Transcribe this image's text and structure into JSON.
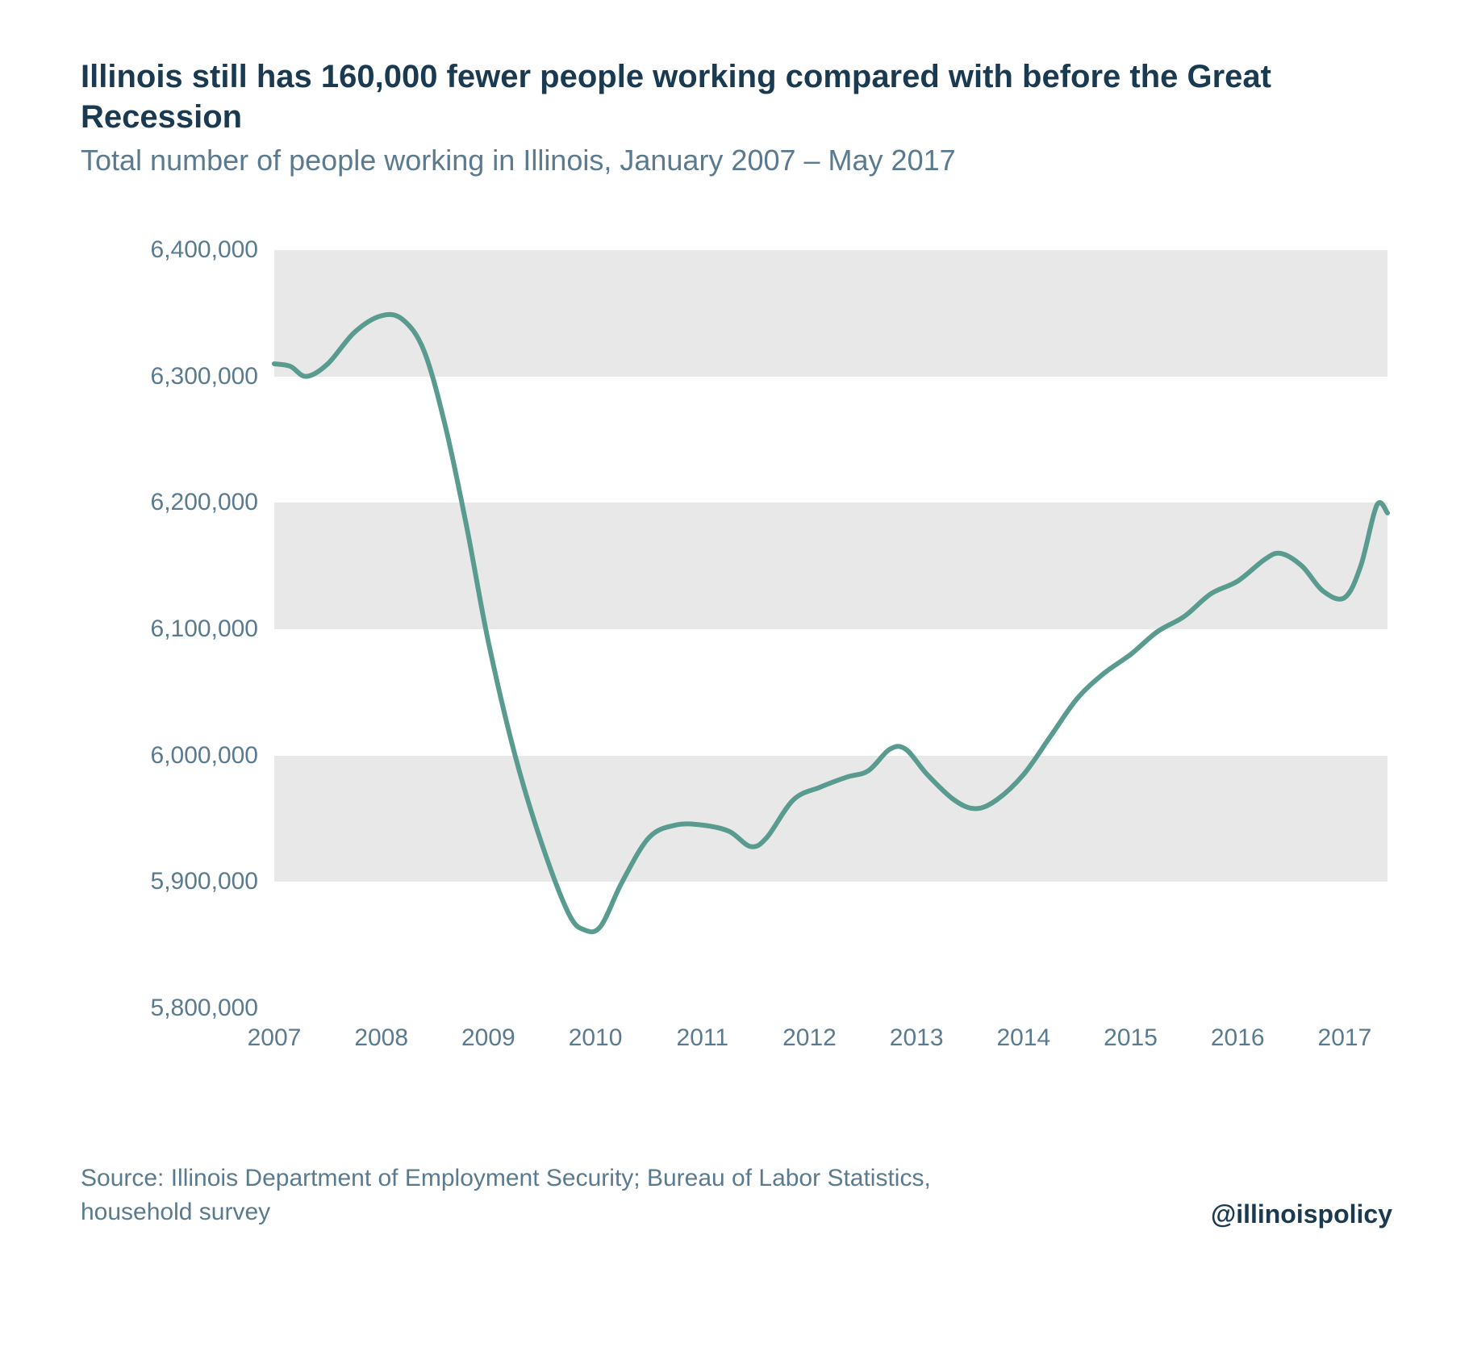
{
  "title": "Illinois still has 160,000 fewer people working compared with before the Great Recession",
  "subtitle": "Total number of people working in Illinois, January 2007 – May 2017",
  "source": "Source:  Illinois Department of Employment Security; Bureau of Labor Statistics, household survey",
  "handle": "@illinoispolicy",
  "chart": {
    "type": "line",
    "background_color": "#ffffff",
    "band_color": "#e8e8e8",
    "line_color": "#5a9b8f",
    "line_width": 6,
    "text_color": "#5a7a8f",
    "title_color": "#1a3a52",
    "title_fontsize": 40,
    "subtitle_fontsize": 36,
    "axis_label_fontsize": 30,
    "ylim": [
      5800000,
      6400000
    ],
    "ytick_step": 100000,
    "yticks": [
      5800000,
      5900000,
      6000000,
      6100000,
      6200000,
      6300000,
      6400000
    ],
    "ytick_labels": [
      "5,800,000",
      "5,900,000",
      "6,000,000",
      "6,100,000",
      "6,200,000",
      "6,300,000",
      "6,400,000"
    ],
    "xlim": [
      2007,
      2017.4
    ],
    "xticks": [
      2007,
      2008,
      2009,
      2010,
      2011,
      2012,
      2013,
      2014,
      2015,
      2016,
      2017
    ],
    "xtick_labels": [
      "2007",
      "2008",
      "2009",
      "2010",
      "2011",
      "2012",
      "2013",
      "2014",
      "2015",
      "2016",
      "2017"
    ],
    "series": [
      {
        "x": 2007.0,
        "y": 6310000
      },
      {
        "x": 2007.15,
        "y": 6308000
      },
      {
        "x": 2007.3,
        "y": 6300000
      },
      {
        "x": 2007.5,
        "y": 6310000
      },
      {
        "x": 2007.75,
        "y": 6335000
      },
      {
        "x": 2008.0,
        "y": 6348000
      },
      {
        "x": 2008.2,
        "y": 6345000
      },
      {
        "x": 2008.4,
        "y": 6320000
      },
      {
        "x": 2008.6,
        "y": 6260000
      },
      {
        "x": 2008.8,
        "y": 6180000
      },
      {
        "x": 2009.0,
        "y": 6090000
      },
      {
        "x": 2009.25,
        "y": 6000000
      },
      {
        "x": 2009.5,
        "y": 5930000
      },
      {
        "x": 2009.75,
        "y": 5875000
      },
      {
        "x": 2009.9,
        "y": 5862000
      },
      {
        "x": 2010.05,
        "y": 5865000
      },
      {
        "x": 2010.25,
        "y": 5900000
      },
      {
        "x": 2010.5,
        "y": 5935000
      },
      {
        "x": 2010.75,
        "y": 5945000
      },
      {
        "x": 2011.0,
        "y": 5945000
      },
      {
        "x": 2011.25,
        "y": 5940000
      },
      {
        "x": 2011.45,
        "y": 5928000
      },
      {
        "x": 2011.6,
        "y": 5935000
      },
      {
        "x": 2011.85,
        "y": 5965000
      },
      {
        "x": 2012.1,
        "y": 5975000
      },
      {
        "x": 2012.35,
        "y": 5983000
      },
      {
        "x": 2012.55,
        "y": 5988000
      },
      {
        "x": 2012.75,
        "y": 6005000
      },
      {
        "x": 2012.9,
        "y": 6005000
      },
      {
        "x": 2013.1,
        "y": 5985000
      },
      {
        "x": 2013.35,
        "y": 5965000
      },
      {
        "x": 2013.55,
        "y": 5958000
      },
      {
        "x": 2013.75,
        "y": 5965000
      },
      {
        "x": 2014.0,
        "y": 5985000
      },
      {
        "x": 2014.25,
        "y": 6015000
      },
      {
        "x": 2014.5,
        "y": 6045000
      },
      {
        "x": 2014.75,
        "y": 6065000
      },
      {
        "x": 2015.0,
        "y": 6080000
      },
      {
        "x": 2015.25,
        "y": 6098000
      },
      {
        "x": 2015.5,
        "y": 6110000
      },
      {
        "x": 2015.75,
        "y": 6128000
      },
      {
        "x": 2016.0,
        "y": 6138000
      },
      {
        "x": 2016.25,
        "y": 6155000
      },
      {
        "x": 2016.4,
        "y": 6160000
      },
      {
        "x": 2016.6,
        "y": 6150000
      },
      {
        "x": 2016.8,
        "y": 6130000
      },
      {
        "x": 2017.0,
        "y": 6125000
      },
      {
        "x": 2017.15,
        "y": 6150000
      },
      {
        "x": 2017.3,
        "y": 6198000
      },
      {
        "x": 2017.4,
        "y": 6192000
      }
    ]
  }
}
